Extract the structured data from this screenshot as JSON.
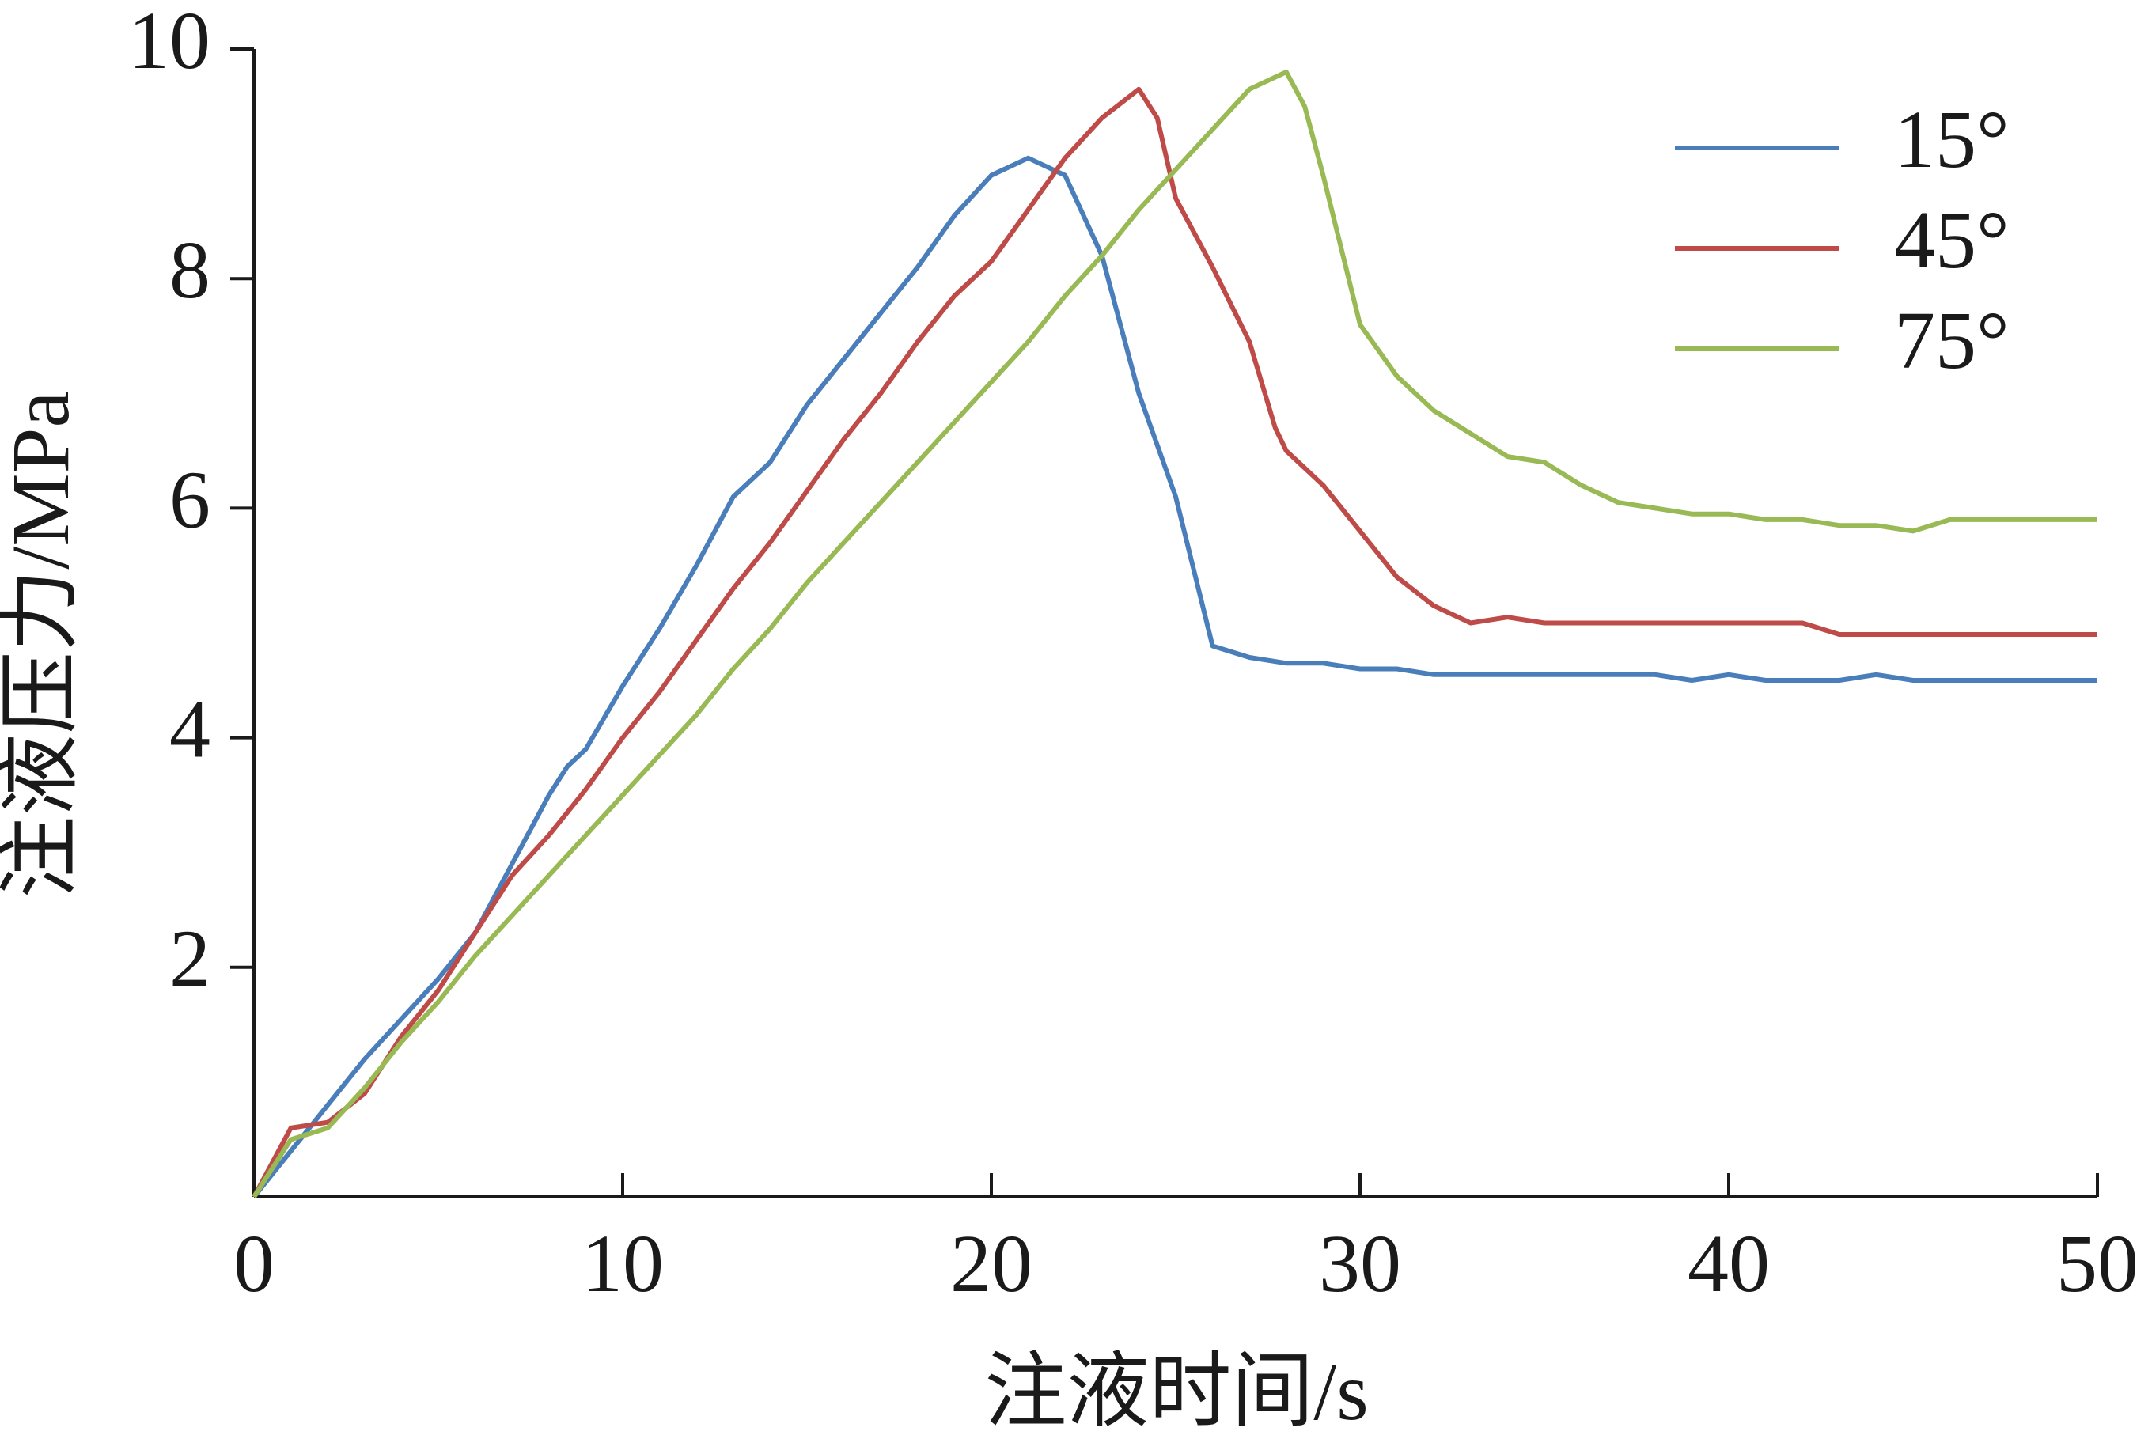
{
  "chart_data": {
    "type": "line",
    "xlabel": "注液时间/s",
    "ylabel": "注液压力/MPa",
    "xlim": [
      0,
      50
    ],
    "ylim": [
      0,
      10
    ],
    "xticks": [
      0,
      10,
      20,
      30,
      40,
      50
    ],
    "yticks": [
      2,
      4,
      6,
      8,
      10
    ],
    "legend": "upper right",
    "grid": false,
    "series": [
      {
        "name": "15°",
        "color": "#4a7ebb",
        "x": [
          0,
          1,
          2,
          3,
          4,
          5,
          6,
          7,
          8,
          8.5,
          9,
          10,
          11,
          12,
          13,
          14,
          15,
          16,
          17,
          18,
          19,
          20,
          21,
          22,
          23,
          24,
          25,
          26,
          27,
          28,
          29,
          30,
          31,
          32,
          35,
          38,
          39,
          40,
          41,
          43,
          44,
          45,
          50
        ],
        "values": [
          0,
          0.4,
          0.8,
          1.2,
          1.55,
          1.9,
          2.3,
          2.9,
          3.5,
          3.75,
          3.9,
          4.45,
          4.95,
          5.5,
          6.1,
          6.4,
          6.9,
          7.3,
          7.7,
          8.1,
          8.55,
          8.9,
          9.05,
          8.9,
          8.2,
          7.0,
          6.1,
          4.8,
          4.7,
          4.65,
          4.65,
          4.6,
          4.6,
          4.55,
          4.55,
          4.55,
          4.5,
          4.55,
          4.5,
          4.5,
          4.55,
          4.5,
          4.5
        ]
      },
      {
        "name": "45°",
        "color": "#be4b48",
        "x": [
          0,
          1,
          2,
          3,
          4,
          5,
          6,
          7,
          8,
          9,
          10,
          11,
          12,
          13,
          14,
          15,
          16,
          17,
          18,
          19,
          20,
          21,
          22,
          23,
          24,
          24.5,
          25,
          26,
          27,
          27.7,
          28,
          29,
          30,
          31,
          32,
          33,
          34,
          35,
          40,
          42,
          43,
          50
        ],
        "values": [
          0,
          0.6,
          0.65,
          0.9,
          1.4,
          1.8,
          2.3,
          2.8,
          3.15,
          3.55,
          4.0,
          4.4,
          4.85,
          5.3,
          5.7,
          6.15,
          6.6,
          7.0,
          7.45,
          7.85,
          8.15,
          8.6,
          9.05,
          9.4,
          9.65,
          9.4,
          8.7,
          8.1,
          7.45,
          6.7,
          6.5,
          6.2,
          5.8,
          5.4,
          5.15,
          5.0,
          5.05,
          5.0,
          5.0,
          5.0,
          4.9,
          4.9
        ]
      },
      {
        "name": "75°",
        "color": "#98b954",
        "x": [
          0,
          1,
          2,
          3,
          4,
          5,
          6,
          7,
          8,
          9,
          10,
          11,
          12,
          13,
          14,
          15,
          16,
          17,
          18,
          19,
          20,
          21,
          22,
          23,
          24,
          25,
          26,
          27,
          28,
          28.5,
          29,
          30,
          31,
          32,
          33,
          34,
          35,
          36,
          37,
          38,
          39,
          40,
          41,
          42,
          43,
          44,
          45,
          46,
          50
        ],
        "values": [
          0,
          0.5,
          0.6,
          0.95,
          1.35,
          1.7,
          2.1,
          2.45,
          2.8,
          3.15,
          3.5,
          3.85,
          4.2,
          4.6,
          4.95,
          5.35,
          5.7,
          6.05,
          6.4,
          6.75,
          7.1,
          7.45,
          7.85,
          8.2,
          8.6,
          8.95,
          9.3,
          9.65,
          9.8,
          9.5,
          8.9,
          7.6,
          7.15,
          6.85,
          6.65,
          6.45,
          6.4,
          6.2,
          6.05,
          6.0,
          5.95,
          5.95,
          5.9,
          5.9,
          5.85,
          5.85,
          5.8,
          5.9,
          5.9
        ]
      }
    ]
  }
}
